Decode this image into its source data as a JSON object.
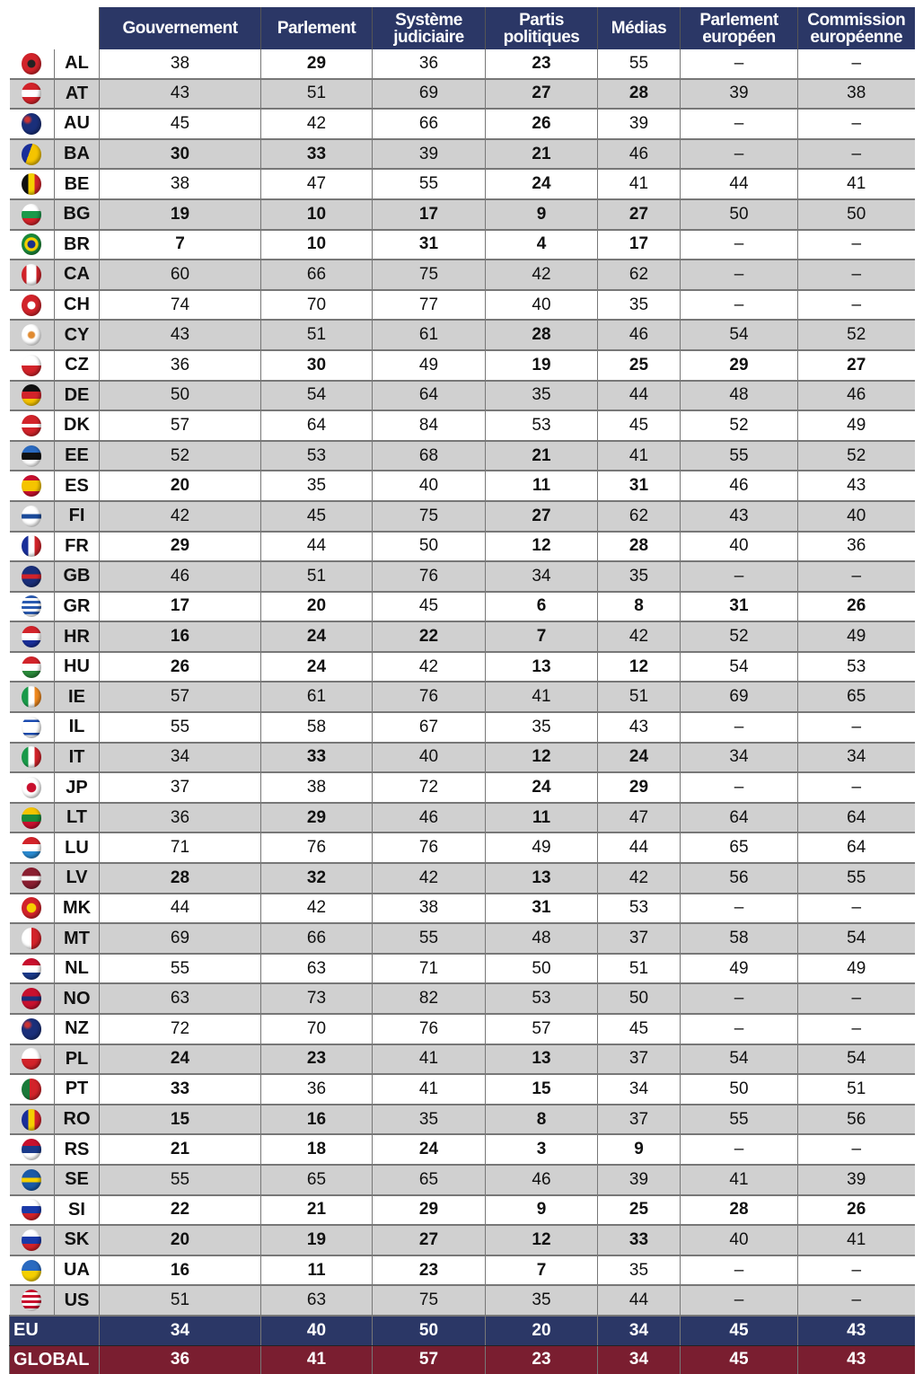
{
  "headers": [
    "Gouvernement",
    "Parlement",
    "Système judiciaire",
    "Partis politiques",
    "Médias",
    "Parlement européen",
    "Commission européenne"
  ],
  "rows": [
    [
      "AL",
      "38",
      "29",
      "36",
      "23",
      "55",
      "–",
      "–"
    ],
    [
      "AT",
      "43",
      "51",
      "69",
      "27",
      "28",
      "39",
      "38"
    ],
    [
      "AU",
      "45",
      "42",
      "66",
      "26",
      "39",
      "–",
      "–"
    ],
    [
      "BA",
      "30",
      "33",
      "39",
      "21",
      "46",
      "–",
      "–"
    ],
    [
      "BE",
      "38",
      "47",
      "55",
      "24",
      "41",
      "44",
      "41"
    ],
    [
      "BG",
      "19",
      "10",
      "17",
      "9",
      "27",
      "50",
      "50"
    ],
    [
      "BR",
      "7",
      "10",
      "31",
      "4",
      "17",
      "–",
      "–"
    ],
    [
      "CA",
      "60",
      "66",
      "75",
      "42",
      "62",
      "–",
      "–"
    ],
    [
      "CH",
      "74",
      "70",
      "77",
      "40",
      "35",
      "–",
      "–"
    ],
    [
      "CY",
      "43",
      "51",
      "61",
      "28",
      "46",
      "54",
      "52"
    ],
    [
      "CZ",
      "36",
      "30",
      "49",
      "19",
      "25",
      "29",
      "27"
    ],
    [
      "DE",
      "50",
      "54",
      "64",
      "35",
      "44",
      "48",
      "46"
    ],
    [
      "DK",
      "57",
      "64",
      "84",
      "53",
      "45",
      "52",
      "49"
    ],
    [
      "EE",
      "52",
      "53",
      "68",
      "21",
      "41",
      "55",
      "52"
    ],
    [
      "ES",
      "20",
      "35",
      "40",
      "11",
      "31",
      "46",
      "43"
    ],
    [
      "FI",
      "42",
      "45",
      "75",
      "27",
      "62",
      "43",
      "40"
    ],
    [
      "FR",
      "29",
      "44",
      "50",
      "12",
      "28",
      "40",
      "36"
    ],
    [
      "GB",
      "46",
      "51",
      "76",
      "34",
      "35",
      "–",
      "–"
    ],
    [
      "GR",
      "17",
      "20",
      "45",
      "6",
      "8",
      "31",
      "26"
    ],
    [
      "HR",
      "16",
      "24",
      "22",
      "7",
      "42",
      "52",
      "49"
    ],
    [
      "HU",
      "26",
      "24",
      "42",
      "13",
      "12",
      "54",
      "53"
    ],
    [
      "IE",
      "57",
      "61",
      "76",
      "41",
      "51",
      "69",
      "65"
    ],
    [
      "IL",
      "55",
      "58",
      "67",
      "35",
      "43",
      "–",
      "–"
    ],
    [
      "IT",
      "34",
      "33",
      "40",
      "12",
      "24",
      "34",
      "34"
    ],
    [
      "JP",
      "37",
      "38",
      "72",
      "24",
      "29",
      "–",
      "–"
    ],
    [
      "LT",
      "36",
      "29",
      "46",
      "11",
      "47",
      "64",
      "64"
    ],
    [
      "LU",
      "71",
      "76",
      "76",
      "49",
      "44",
      "65",
      "64"
    ],
    [
      "LV",
      "28",
      "32",
      "42",
      "13",
      "42",
      "56",
      "55"
    ],
    [
      "MK",
      "44",
      "42",
      "38",
      "31",
      "53",
      "–",
      "–"
    ],
    [
      "MT",
      "69",
      "66",
      "55",
      "48",
      "37",
      "58",
      "54"
    ],
    [
      "NL",
      "55",
      "63",
      "71",
      "50",
      "51",
      "49",
      "49"
    ],
    [
      "NO",
      "63",
      "73",
      "82",
      "53",
      "50",
      "–",
      "–"
    ],
    [
      "NZ",
      "72",
      "70",
      "76",
      "57",
      "45",
      "–",
      "–"
    ],
    [
      "PL",
      "24",
      "23",
      "41",
      "13",
      "37",
      "54",
      "54"
    ],
    [
      "PT",
      "33",
      "36",
      "41",
      "15",
      "34",
      "50",
      "51"
    ],
    [
      "RO",
      "15",
      "16",
      "35",
      "8",
      "37",
      "55",
      "56"
    ],
    [
      "RS",
      "21",
      "18",
      "24",
      "3",
      "9",
      "–",
      "–"
    ],
    [
      "SE",
      "55",
      "65",
      "65",
      "46",
      "39",
      "41",
      "39"
    ],
    [
      "SI",
      "22",
      "21",
      "29",
      "9",
      "25",
      "28",
      "26"
    ],
    [
      "SK",
      "20",
      "19",
      "27",
      "12",
      "33",
      "40",
      "41"
    ],
    [
      "UA",
      "16",
      "11",
      "23",
      "7",
      "35",
      "–",
      "–"
    ],
    [
      "US",
      "51",
      "63",
      "75",
      "35",
      "44",
      "–",
      "–"
    ]
  ],
  "eu": [
    "EU",
    "34",
    "40",
    "50",
    "20",
    "34",
    "45",
    "43"
  ],
  "global": [
    "GLOBAL",
    "36",
    "41",
    "57",
    "23",
    "34",
    "45",
    "43"
  ],
  "flag_colors": {
    "AL": "radial-gradient(circle,#222 25%,#d2232a 30%)",
    "AT": "linear-gradient(#d2232a 33%,#fff 33% 66%,#d2232a 66%)",
    "AU": "radial-gradient(circle at 30% 30%,#c33 10%,#1a2f7a 25%)",
    "BA": "linear-gradient(110deg,#1a2f9a 40%,#f5c400 40%)",
    "BE": "linear-gradient(90deg,#111 33%,#f5d000 33% 66%,#d2232a 66%)",
    "BG": "linear-gradient(#fff 33%,#1a9a4a 33% 66%,#d2232a 66%)",
    "BR": "radial-gradient(circle,#1a2f8a 25%,#f5d000 30% 45%,#1a8a3a 50%)",
    "CA": "linear-gradient(90deg,#d2232a 25%,#fff 25% 75%,#d2232a 75%)",
    "CH": "radial-gradient(circle,#fff 25%,#d2232a 30%)",
    "CY": "radial-gradient(circle,#e08a30 20%,#fff 30%)",
    "CZ": "linear-gradient(#fff 50%,#d2232a 50%)",
    "DE": "linear-gradient(#111 33%,#d2232a 33% 66%,#f5c400 66%)",
    "DK": "linear-gradient(#d2232a 42%,#fff 42% 58%,#d2232a 58%)",
    "EE": "linear-gradient(#2a6ac0 33%,#111 33% 66%,#fff 66%)",
    "ES": "linear-gradient(#c8102e 25%,#f5c400 25% 75%,#c8102e 75%)",
    "FI": "linear-gradient(#fff 40%,#1a4a9a 40% 60%,#fff 60%)",
    "FR": "linear-gradient(90deg,#1a2f9a 33%,#fff 33% 66%,#d2232a 66%)",
    "GB": "linear-gradient(#1a2f7a 40%,#d2232a 40% 60%,#1a2f7a 60%)",
    "GR": "repeating-linear-gradient(#2a5ab0 0 3px,#fff 3px 6px)",
    "HR": "linear-gradient(#d2232a 33%,#fff 33% 66%,#1a2f9a 66%)",
    "HU": "linear-gradient(#d2232a 33%,#fff 33% 66%,#2a8a3a 66%)",
    "IE": "linear-gradient(90deg,#1a9a4a 33%,#fff 33% 66%,#f08a20 66%)",
    "IL": "linear-gradient(#fff 15%,#1a4ab0 15% 25%,#fff 25% 75%,#1a4ab0 75% 85%,#fff 85%)",
    "IT": "linear-gradient(90deg,#1a9a4a 33%,#fff 33% 66%,#d2232a 66%)",
    "JP": "radial-gradient(circle,#c8102e 30%,#fff 35%)",
    "LT": "linear-gradient(#f5c400 33%,#1a8a3a 33% 66%,#c8102e 66%)",
    "LU": "linear-gradient(#d2232a 33%,#fff 33% 66%,#2a8ad0 66%)",
    "LV": "linear-gradient(#8a1e30 40%,#fff 40% 60%,#8a1e30 60%)",
    "MK": "radial-gradient(circle,#f5d000 30%,#d2232a 35%)",
    "MT": "linear-gradient(90deg,#fff 50%,#d2232a 50%)",
    "NL": "linear-gradient(#c8102e 33%,#fff 33% 66%,#1a3a8a 66%)",
    "NO": "linear-gradient(#c8102e 40%,#1a2f7a 40% 60%,#c8102e 60%)",
    "NZ": "radial-gradient(circle at 30% 30%,#c33 10%,#1a2f7a 25%)",
    "PL": "linear-gradient(#fff 50%,#d2232a 50%)",
    "PT": "linear-gradient(90deg,#1a7a3a 40%,#d2232a 40%)",
    "RO": "linear-gradient(90deg,#1a2f9a 33%,#f5d000 33% 66%,#d2232a 66%)",
    "RS": "linear-gradient(#c8102e 33%,#1a3a8a 33% 66%,#fff 66%)",
    "SE": "linear-gradient(#1a5aa8 40%,#f5d000 40% 60%,#1a5aa8 60%)",
    "SI": "linear-gradient(#fff 33%,#1a3aa8 33% 66%,#d2232a 66%)",
    "SK": "linear-gradient(#fff 33%,#1a3aa8 33% 66%,#d2232a 66%)",
    "UA": "linear-gradient(#2a6ac0 50%,#f5d000 50%)",
    "US": "repeating-linear-gradient(#c8102e 0 3px,#fff 3px 6px)"
  }
}
